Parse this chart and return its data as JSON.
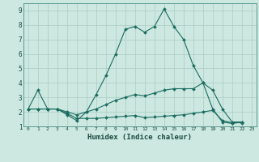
{
  "title": "",
  "xlabel": "Humidex (Indice chaleur)",
  "bg_color": "#cce8e0",
  "grid_color": "#aaccc4",
  "line_color": "#1a6b60",
  "xlim": [
    -0.5,
    23.5
  ],
  "ylim": [
    1,
    9.5
  ],
  "xticks": [
    0,
    1,
    2,
    3,
    4,
    5,
    6,
    7,
    8,
    9,
    10,
    11,
    12,
    13,
    14,
    15,
    16,
    17,
    18,
    19,
    20,
    21,
    22,
    23
  ],
  "yticks": [
    1,
    2,
    3,
    4,
    5,
    6,
    7,
    8,
    9
  ],
  "series1_x": [
    0,
    1,
    2,
    3,
    4,
    5,
    6,
    7,
    8,
    9,
    10,
    11,
    12,
    13,
    14,
    15,
    16,
    17,
    18,
    19,
    20,
    21,
    22
  ],
  "series1_y": [
    2.2,
    3.5,
    2.2,
    2.2,
    1.8,
    1.4,
    2.0,
    3.2,
    4.5,
    6.0,
    7.7,
    7.9,
    7.5,
    7.9,
    9.1,
    7.9,
    7.0,
    5.2,
    4.0,
    2.2,
    1.3,
    1.2,
    1.3
  ],
  "series2_x": [
    0,
    1,
    2,
    3,
    4,
    5,
    6,
    7,
    8,
    9,
    10,
    11,
    12,
    13,
    14,
    15,
    16,
    17,
    18,
    19,
    20,
    21,
    22
  ],
  "series2_y": [
    2.2,
    2.2,
    2.2,
    2.2,
    1.9,
    1.55,
    1.55,
    1.55,
    1.6,
    1.65,
    1.7,
    1.75,
    1.6,
    1.65,
    1.7,
    1.75,
    1.8,
    1.9,
    2.0,
    2.1,
    1.4,
    1.25,
    1.25
  ],
  "series3_x": [
    0,
    1,
    2,
    3,
    4,
    5,
    6,
    7,
    8,
    9,
    10,
    11,
    12,
    13,
    14,
    15,
    16,
    17,
    18,
    19,
    20,
    21,
    22
  ],
  "series3_y": [
    2.2,
    2.2,
    2.2,
    2.2,
    2.0,
    1.8,
    2.0,
    2.2,
    2.5,
    2.8,
    3.0,
    3.2,
    3.1,
    3.3,
    3.5,
    3.6,
    3.6,
    3.6,
    4.0,
    3.5,
    2.2,
    1.3,
    1.3
  ]
}
